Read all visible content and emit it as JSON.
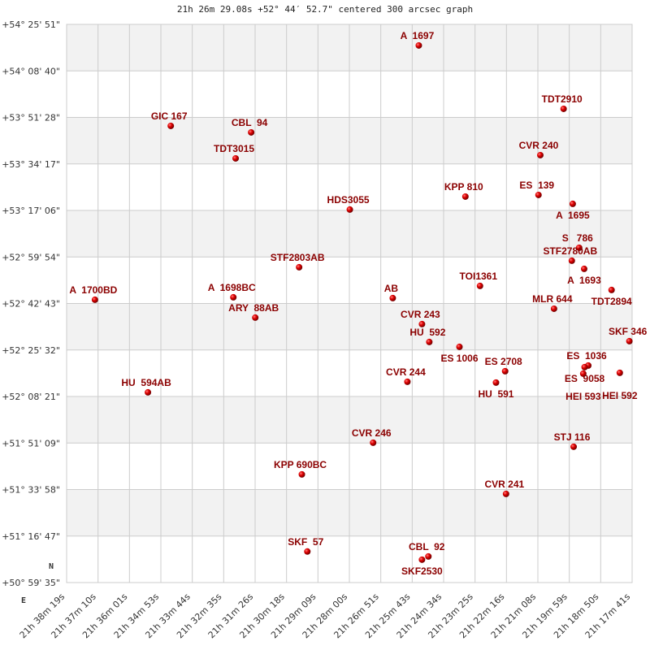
{
  "chart_data": {
    "type": "scatter",
    "title": "21h 26m 29.08s +52° 44′ 52.7\" centered 300 arcsec graph",
    "x_axis": {
      "quantity": "right ascension",
      "direction": "decreasing to the right",
      "range": [
        "21h 38m 19s",
        "21h 17m 41s"
      ],
      "tick_labels": [
        "21h 38m 19s",
        "21h 37m 10s",
        "21h 36m 01s",
        "21h 34m 53s",
        "21h 33m 44s",
        "21h 32m 35s",
        "21h 31m 26s",
        "21h 30m 18s",
        "21h 29m 09s",
        "21h 28m 00s",
        "21h 26m 51s",
        "21h 25m 43s",
        "21h 24m 34s",
        "21h 23m 25s",
        "21h 22m 16s",
        "21h 21m 08s",
        "21h 19m 59s",
        "21h 18m 50s",
        "21h 17m 41s"
      ]
    },
    "y_axis": {
      "quantity": "declination",
      "range": [
        "+50° 59' 35\"",
        "+54° 25' 51\""
      ],
      "tick_labels": [
        "+54° 25' 51\"",
        "+54° 08' 40\"",
        "+53° 51' 28\"",
        "+53° 34' 17\"",
        "+53° 17' 06\"",
        "+52° 59' 54\"",
        "+52° 42' 43\"",
        "+52° 25' 32\"",
        "+52° 08' 21\"",
        "+51° 51' 09\"",
        "+51° 33' 58\"",
        "+51° 16' 47\"",
        "+50° 59' 35\""
      ]
    },
    "grid": true,
    "alternating_bands": true,
    "compass": {
      "north": "N",
      "east": "E"
    },
    "colors": {
      "point": "#cc0000",
      "label": "#8b0000",
      "band": "#f2f2f2",
      "grid": "#cccccc"
    },
    "points": [
      {
        "name": "A  1697",
        "ra": "21h 25m 28s",
        "dec": "+54° 18' 03\""
      },
      {
        "name": "TDT2910",
        "ra": "21h 20m 11s",
        "dec": "+53° 54' 38\""
      },
      {
        "name": "GIC 167",
        "ra": "21h 34m 31s",
        "dec": "+53° 48' 20\""
      },
      {
        "name": "CBL  94",
        "ra": "21h 31m 35s",
        "dec": "+53° 45' 56\""
      },
      {
        "name": "TDT3015",
        "ra": "21h 32m 09s",
        "dec": "+53° 36' 19\""
      },
      {
        "name": "CVR 240",
        "ra": "21h 21m 02s",
        "dec": "+53° 37' 31\""
      },
      {
        "name": "KPP 810",
        "ra": "21h 23m 46s",
        "dec": "+53° 22' 13\""
      },
      {
        "name": "ES  139",
        "ra": "21h 21m 06s",
        "dec": "+53° 22' 49\""
      },
      {
        "name": "A  1695",
        "ra": "21h 19m 51s",
        "dec": "+53° 19' 31\""
      },
      {
        "name": "HDS3055",
        "ra": "21h 27m 59s",
        "dec": "+53° 17' 25\""
      },
      {
        "name": "S   786",
        "ra": "21h 19m 37s",
        "dec": "+53° 03' 18\""
      },
      {
        "name": "STF2780AB",
        "ra": "21h 19m 53s",
        "dec": "+52° 58' 30\""
      },
      {
        "name": "A  1693",
        "ra": "21h 19m 26s",
        "dec": "+52° 55' 30\""
      },
      {
        "name": "STF2803AB",
        "ra": "21h 29m 50s",
        "dec": "+52° 56' 06\""
      },
      {
        "name": "TOI1361",
        "ra": "21h 23m 14s",
        "dec": "+52° 49' 12\""
      },
      {
        "name": "TDT2894",
        "ra": "21h 18m 26s",
        "dec": "+52° 47' 42\""
      },
      {
        "name": "A  1700BD",
        "ra": "21h 37m 17s",
        "dec": "+52° 44' 06\""
      },
      {
        "name": "A  1698BC",
        "ra": "21h 32m 14s",
        "dec": "+52° 45' 00\""
      },
      {
        "name": "AB",
        "ra": "21h 26m 25s",
        "dec": "+52° 44' 42\""
      },
      {
        "name": "ARY  88AB",
        "ra": "21h 31m 26s",
        "dec": "+52° 37' 29\""
      },
      {
        "name": "MLR 644",
        "ra": "21h 20m 32s",
        "dec": "+52° 40' 47\""
      },
      {
        "name": "CVR 243",
        "ra": "21h 25m 21s",
        "dec": "+52° 35' 05\""
      },
      {
        "name": "HU  592",
        "ra": "21h 25m 05s",
        "dec": "+52° 28' 29\""
      },
      {
        "name": "SKF 346",
        "ra": "21h 17m 47s",
        "dec": "+52° 28' 47\""
      },
      {
        "name": "ES 1006",
        "ra": "21h 23m 59s",
        "dec": "+52° 26' 41\""
      },
      {
        "name": "ES 2708",
        "ra": "21h 22m 19s",
        "dec": "+52° 17' 41\""
      },
      {
        "name": "HU  591",
        "ra": "21h 22m 39s",
        "dec": "+52° 13' 29\""
      },
      {
        "name": "ES  1036",
        "ra": "21h 19m 17s",
        "dec": "+52° 19' 47\""
      },
      {
        "name": "ES  9058",
        "ra": "21h 19m 25s",
        "dec": "+52° 19' 11\""
      },
      {
        "name": "HEI 593",
        "ra": "21h 19m 28s",
        "dec": "+52° 16' 47\""
      },
      {
        "name": "HEI 592",
        "ra": "21h 18m 08s",
        "dec": "+52° 17' 05\""
      },
      {
        "name": "CVR 244",
        "ra": "21h 25m 53s",
        "dec": "+52° 13' 47\""
      },
      {
        "name": "HU  594AB",
        "ra": "21h 35m 21s",
        "dec": "+52° 09' 52\""
      },
      {
        "name": "CVR 246",
        "ra": "21h 27m 08s",
        "dec": "+51° 51' 16\""
      },
      {
        "name": "STJ 116",
        "ra": "21h 19m 49s",
        "dec": "+51° 49' 46\""
      },
      {
        "name": "KPP 690BC",
        "ra": "21h 29m 44s",
        "dec": "+51° 39' 33\""
      },
      {
        "name": "CVR 241",
        "ra": "21h 22m 17s",
        "dec": "+51° 32' 21\""
      },
      {
        "name": "SKF  57",
        "ra": "21h 29m 32s",
        "dec": "+51° 11' 03\""
      },
      {
        "name": "CBL  92",
        "ra": "21h 25m 07s",
        "dec": "+51° 09' 14\""
      },
      {
        "name": "SKF2530",
        "ra": "21h 25m 21s",
        "dec": "+51° 08' 02\""
      }
    ]
  }
}
